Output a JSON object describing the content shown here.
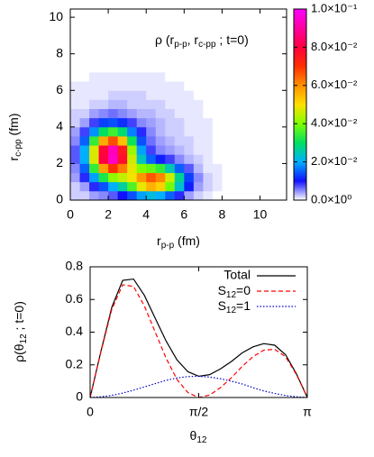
{
  "chart_data": [
    {
      "type": "heatmap",
      "annotation": [
        "ρ (r",
        "p-p",
        ", r",
        "c-pp",
        " ; t=0)"
      ],
      "xlabel": [
        "r",
        "p-p",
        "  (fm)"
      ],
      "ylabel": [
        "r",
        "c-pp",
        " (fm)"
      ],
      "xlim": [
        0,
        11.4
      ],
      "ylim": [
        0,
        10.45
      ],
      "xticks": [
        0,
        2,
        4,
        6,
        8,
        10
      ],
      "yticks": [
        0,
        2,
        4,
        6,
        8,
        10
      ],
      "cblim": [
        0,
        0.1
      ],
      "cbticks": [
        {
          "value": 0,
          "label": "0.0×10⁰"
        },
        {
          "value": 0.02,
          "label": "2.0×10⁻²"
        },
        {
          "value": 0.04,
          "label": "4.0×10⁻²"
        },
        {
          "value": 0.06,
          "label": "6.0×10⁻²"
        },
        {
          "value": 0.08,
          "label": "8.0×10⁻²"
        },
        {
          "value": 0.1,
          "label": "1.0×10⁻¹"
        }
      ],
      "colormap": [
        "#ffffff",
        "#1010ff",
        "#00b0ff",
        "#00e060",
        "#80ff00",
        "#ffe000",
        "#ff9000",
        "#ff3000",
        "#ff0040",
        "#ff00a0",
        "#ff00ff"
      ],
      "x": [
        0.25,
        0.75,
        1.25,
        1.75,
        2.25,
        2.75,
        3.25,
        3.75,
        4.25,
        4.75,
        5.25,
        5.75,
        6.25,
        6.75,
        7.25,
        7.75,
        8.25,
        8.75,
        9.25,
        9.75,
        10.25,
        10.75,
        11.25
      ],
      "y": [
        0.25,
        0.75,
        1.25,
        1.75,
        2.25,
        2.75,
        3.25,
        3.75,
        4.25,
        4.75,
        5.25,
        5.75,
        6.25,
        6.75,
        7.25,
        7.75,
        8.25,
        8.75,
        9.25,
        9.75,
        10.25
      ],
      "z": [
        [
          0.002,
          0.002,
          0.004,
          0.005,
          0.007,
          0.01,
          0.014,
          0.019,
          0.022,
          0.02,
          0.015,
          0.009,
          0.004,
          0.002,
          0.001,
          0,
          0,
          0,
          0,
          0,
          0,
          0,
          0
        ],
        [
          0.002,
          0.004,
          0.009,
          0.014,
          0.02,
          0.026,
          0.036,
          0.048,
          0.056,
          0.052,
          0.039,
          0.023,
          0.011,
          0.004,
          0.002,
          0.001,
          0,
          0,
          0,
          0,
          0,
          0,
          0
        ],
        [
          0.004,
          0.009,
          0.019,
          0.032,
          0.041,
          0.045,
          0.049,
          0.059,
          0.066,
          0.061,
          0.046,
          0.027,
          0.013,
          0.005,
          0.002,
          0.001,
          0,
          0,
          0,
          0,
          0,
          0,
          0
        ],
        [
          0.005,
          0.015,
          0.034,
          0.058,
          0.07,
          0.062,
          0.048,
          0.04,
          0.038,
          0.034,
          0.025,
          0.015,
          0.007,
          0.003,
          0.001,
          0.001,
          0,
          0,
          0,
          0,
          0,
          0,
          0
        ],
        [
          0.007,
          0.02,
          0.047,
          0.08,
          0.094,
          0.077,
          0.046,
          0.024,
          0.015,
          0.011,
          0.008,
          0.005,
          0.003,
          0.002,
          0.001,
          0,
          0,
          0,
          0,
          0,
          0,
          0,
          0
        ],
        [
          0.007,
          0.02,
          0.047,
          0.079,
          0.093,
          0.075,
          0.042,
          0.019,
          0.008,
          0.005,
          0.004,
          0.003,
          0.002,
          0.001,
          0.001,
          0,
          0,
          0,
          0,
          0,
          0,
          0,
          0
        ],
        [
          0.005,
          0.015,
          0.034,
          0.057,
          0.067,
          0.054,
          0.031,
          0.014,
          0.006,
          0.004,
          0.003,
          0.002,
          0.002,
          0.001,
          0.001,
          0,
          0,
          0,
          0,
          0,
          0,
          0,
          0
        ],
        [
          0.004,
          0.008,
          0.018,
          0.03,
          0.035,
          0.029,
          0.017,
          0.009,
          0.005,
          0.003,
          0.002,
          0.002,
          0.001,
          0.001,
          0.001,
          0,
          0,
          0,
          0,
          0,
          0,
          0,
          0
        ],
        [
          0.002,
          0.004,
          0.008,
          0.013,
          0.014,
          0.012,
          0.008,
          0.005,
          0.004,
          0.003,
          0.002,
          0.002,
          0.001,
          0.001,
          0.001,
          0,
          0,
          0,
          0,
          0,
          0,
          0,
          0
        ],
        [
          0.002,
          0.002,
          0.004,
          0.005,
          0.006,
          0.005,
          0.004,
          0.003,
          0.003,
          0.002,
          0.002,
          0.001,
          0.001,
          0.001,
          0,
          0,
          0,
          0,
          0,
          0,
          0,
          0,
          0
        ],
        [
          0.001,
          0.001,
          0.002,
          0.002,
          0.003,
          0.003,
          0.002,
          0.002,
          0.002,
          0.002,
          0.001,
          0.001,
          0.001,
          0.001,
          0,
          0,
          0,
          0,
          0,
          0,
          0,
          0,
          0
        ],
        [
          0.001,
          0.001,
          0.001,
          0.001,
          0.002,
          0.002,
          0.002,
          0.002,
          0.001,
          0.001,
          0.001,
          0.001,
          0.001,
          0,
          0,
          0,
          0,
          0,
          0,
          0,
          0,
          0,
          0
        ],
        [
          0.001,
          0.001,
          0.001,
          0.001,
          0.001,
          0.001,
          0.001,
          0.001,
          0.001,
          0.001,
          0.001,
          0.001,
          0,
          0,
          0,
          0,
          0,
          0,
          0,
          0,
          0,
          0,
          0
        ],
        [
          0,
          0,
          0.001,
          0.001,
          0.001,
          0.001,
          0.001,
          0.001,
          0.001,
          0.001,
          0,
          0,
          0,
          0,
          0,
          0,
          0,
          0,
          0,
          0,
          0,
          0,
          0
        ],
        [
          0,
          0,
          0,
          0,
          0,
          0,
          0,
          0,
          0,
          0,
          0,
          0,
          0,
          0,
          0,
          0,
          0,
          0,
          0,
          0,
          0,
          0,
          0
        ],
        [
          0,
          0,
          0,
          0,
          0,
          0,
          0,
          0,
          0,
          0,
          0,
          0,
          0,
          0,
          0,
          0,
          0,
          0,
          0,
          0,
          0,
          0,
          0
        ],
        [
          0,
          0,
          0,
          0,
          0,
          0,
          0,
          0,
          0,
          0,
          0,
          0,
          0,
          0,
          0,
          0,
          0,
          0,
          0,
          0,
          0,
          0,
          0
        ],
        [
          0,
          0,
          0,
          0,
          0,
          0,
          0,
          0,
          0,
          0,
          0,
          0,
          0,
          0,
          0,
          0,
          0,
          0,
          0,
          0,
          0,
          0,
          0
        ],
        [
          0,
          0,
          0,
          0,
          0,
          0,
          0,
          0,
          0,
          0,
          0,
          0,
          0,
          0,
          0,
          0,
          0,
          0,
          0,
          0,
          0,
          0,
          0
        ],
        [
          0,
          0,
          0,
          0,
          0,
          0,
          0,
          0,
          0,
          0,
          0,
          0,
          0,
          0,
          0,
          0,
          0,
          0,
          0,
          0,
          0,
          0,
          0
        ],
        [
          0,
          0,
          0,
          0,
          0,
          0,
          0,
          0,
          0,
          0,
          0,
          0,
          0,
          0,
          0,
          0,
          0,
          0,
          0,
          0,
          0,
          0,
          0
        ]
      ]
    },
    {
      "type": "line",
      "xlabel": [
        "θ",
        "12"
      ],
      "ylabel": [
        "ρ(θ",
        "12",
        " ; t=0)"
      ],
      "xlim": [
        0,
        3.1416
      ],
      "ylim": [
        0,
        0.8
      ],
      "xticks": [
        0,
        {
          "value": 1.5708,
          "label": "π/2"
        },
        {
          "value": 3.1416,
          "label": "π"
        }
      ],
      "yticks": [
        0,
        0.2,
        0.4,
        0.6,
        0.8
      ],
      "legend": "upper right",
      "x": [
        0,
        0.157,
        0.314,
        0.471,
        0.628,
        0.785,
        0.942,
        1.1,
        1.257,
        1.414,
        1.571,
        1.728,
        1.885,
        2.042,
        2.199,
        2.356,
        2.513,
        2.67,
        2.827,
        2.985,
        3.142
      ],
      "series": [
        {
          "name": "Total",
          "color": "#000000",
          "style": "solid",
          "values": [
            0,
            0.284,
            0.553,
            0.717,
            0.725,
            0.625,
            0.485,
            0.345,
            0.23,
            0.158,
            0.13,
            0.14,
            0.175,
            0.22,
            0.273,
            0.31,
            0.33,
            0.32,
            0.262,
            0.144,
            0
          ]
        },
        {
          "name": [
            "S",
            "12",
            "=0"
          ],
          "color": "#ff0000",
          "style": "dashed",
          "values": [
            0,
            0.28,
            0.54,
            0.69,
            0.68,
            0.56,
            0.4,
            0.24,
            0.11,
            0.03,
            0,
            0.015,
            0.06,
            0.12,
            0.19,
            0.25,
            0.29,
            0.295,
            0.25,
            0.14,
            0
          ]
        },
        {
          "name": [
            "S",
            "12",
            "=1"
          ],
          "color": "#0000cc",
          "style": "dotted",
          "values": [
            0,
            0.004,
            0.013,
            0.027,
            0.045,
            0.065,
            0.085,
            0.105,
            0.12,
            0.128,
            0.13,
            0.125,
            0.115,
            0.1,
            0.083,
            0.06,
            0.04,
            0.025,
            0.012,
            0.004,
            0
          ]
        }
      ]
    }
  ]
}
